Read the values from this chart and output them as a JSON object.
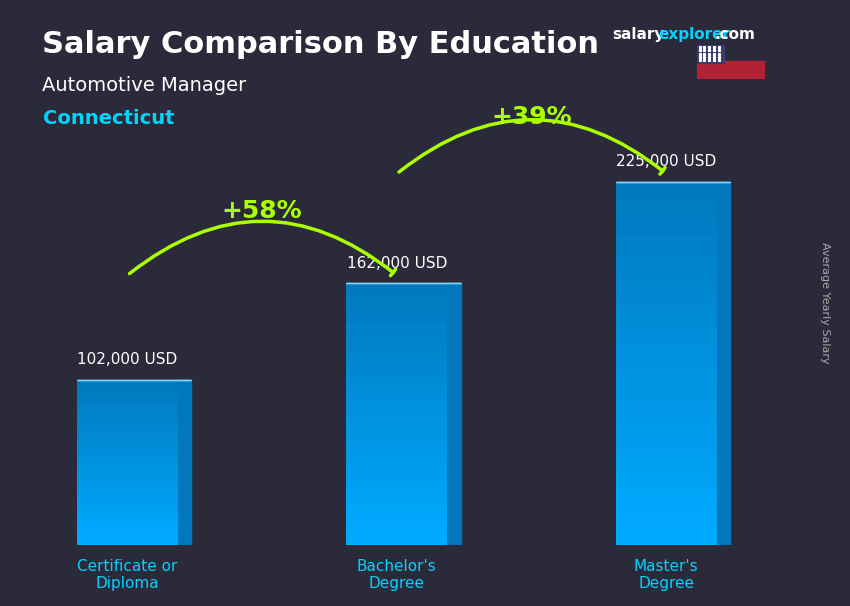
{
  "title_main": "Salary Comparison By Education",
  "title_salary": "salary",
  "title_explorer": "explorer",
  "title_com": ".com",
  "subtitle": "Automotive Manager",
  "location": "Connecticut",
  "ylabel": "Average Yearly Salary",
  "categories": [
    "Certificate or\nDiploma",
    "Bachelor's\nDegree",
    "Master's\nDegree"
  ],
  "values": [
    102000,
    162000,
    225000
  ],
  "value_labels": [
    "102,000 USD",
    "162,000 USD",
    "225,000 USD"
  ],
  "pct_labels": [
    "+58%",
    "+39%"
  ],
  "bar_color_top": "#00d4ff",
  "bar_color_mid": "#0099cc",
  "bar_color_dark": "#007aaa",
  "bar_color_side": "#005f88",
  "background_color": "#1a1a2e",
  "title_color": "#ffffff",
  "subtitle_color": "#ffffff",
  "location_color": "#00d4ff",
  "value_label_color": "#ffffff",
  "pct_color": "#aaff00",
  "arrow_color": "#aaff00",
  "xlabel_color": "#00d4ff",
  "ylim": [
    0,
    270000
  ],
  "bar_width": 0.45
}
